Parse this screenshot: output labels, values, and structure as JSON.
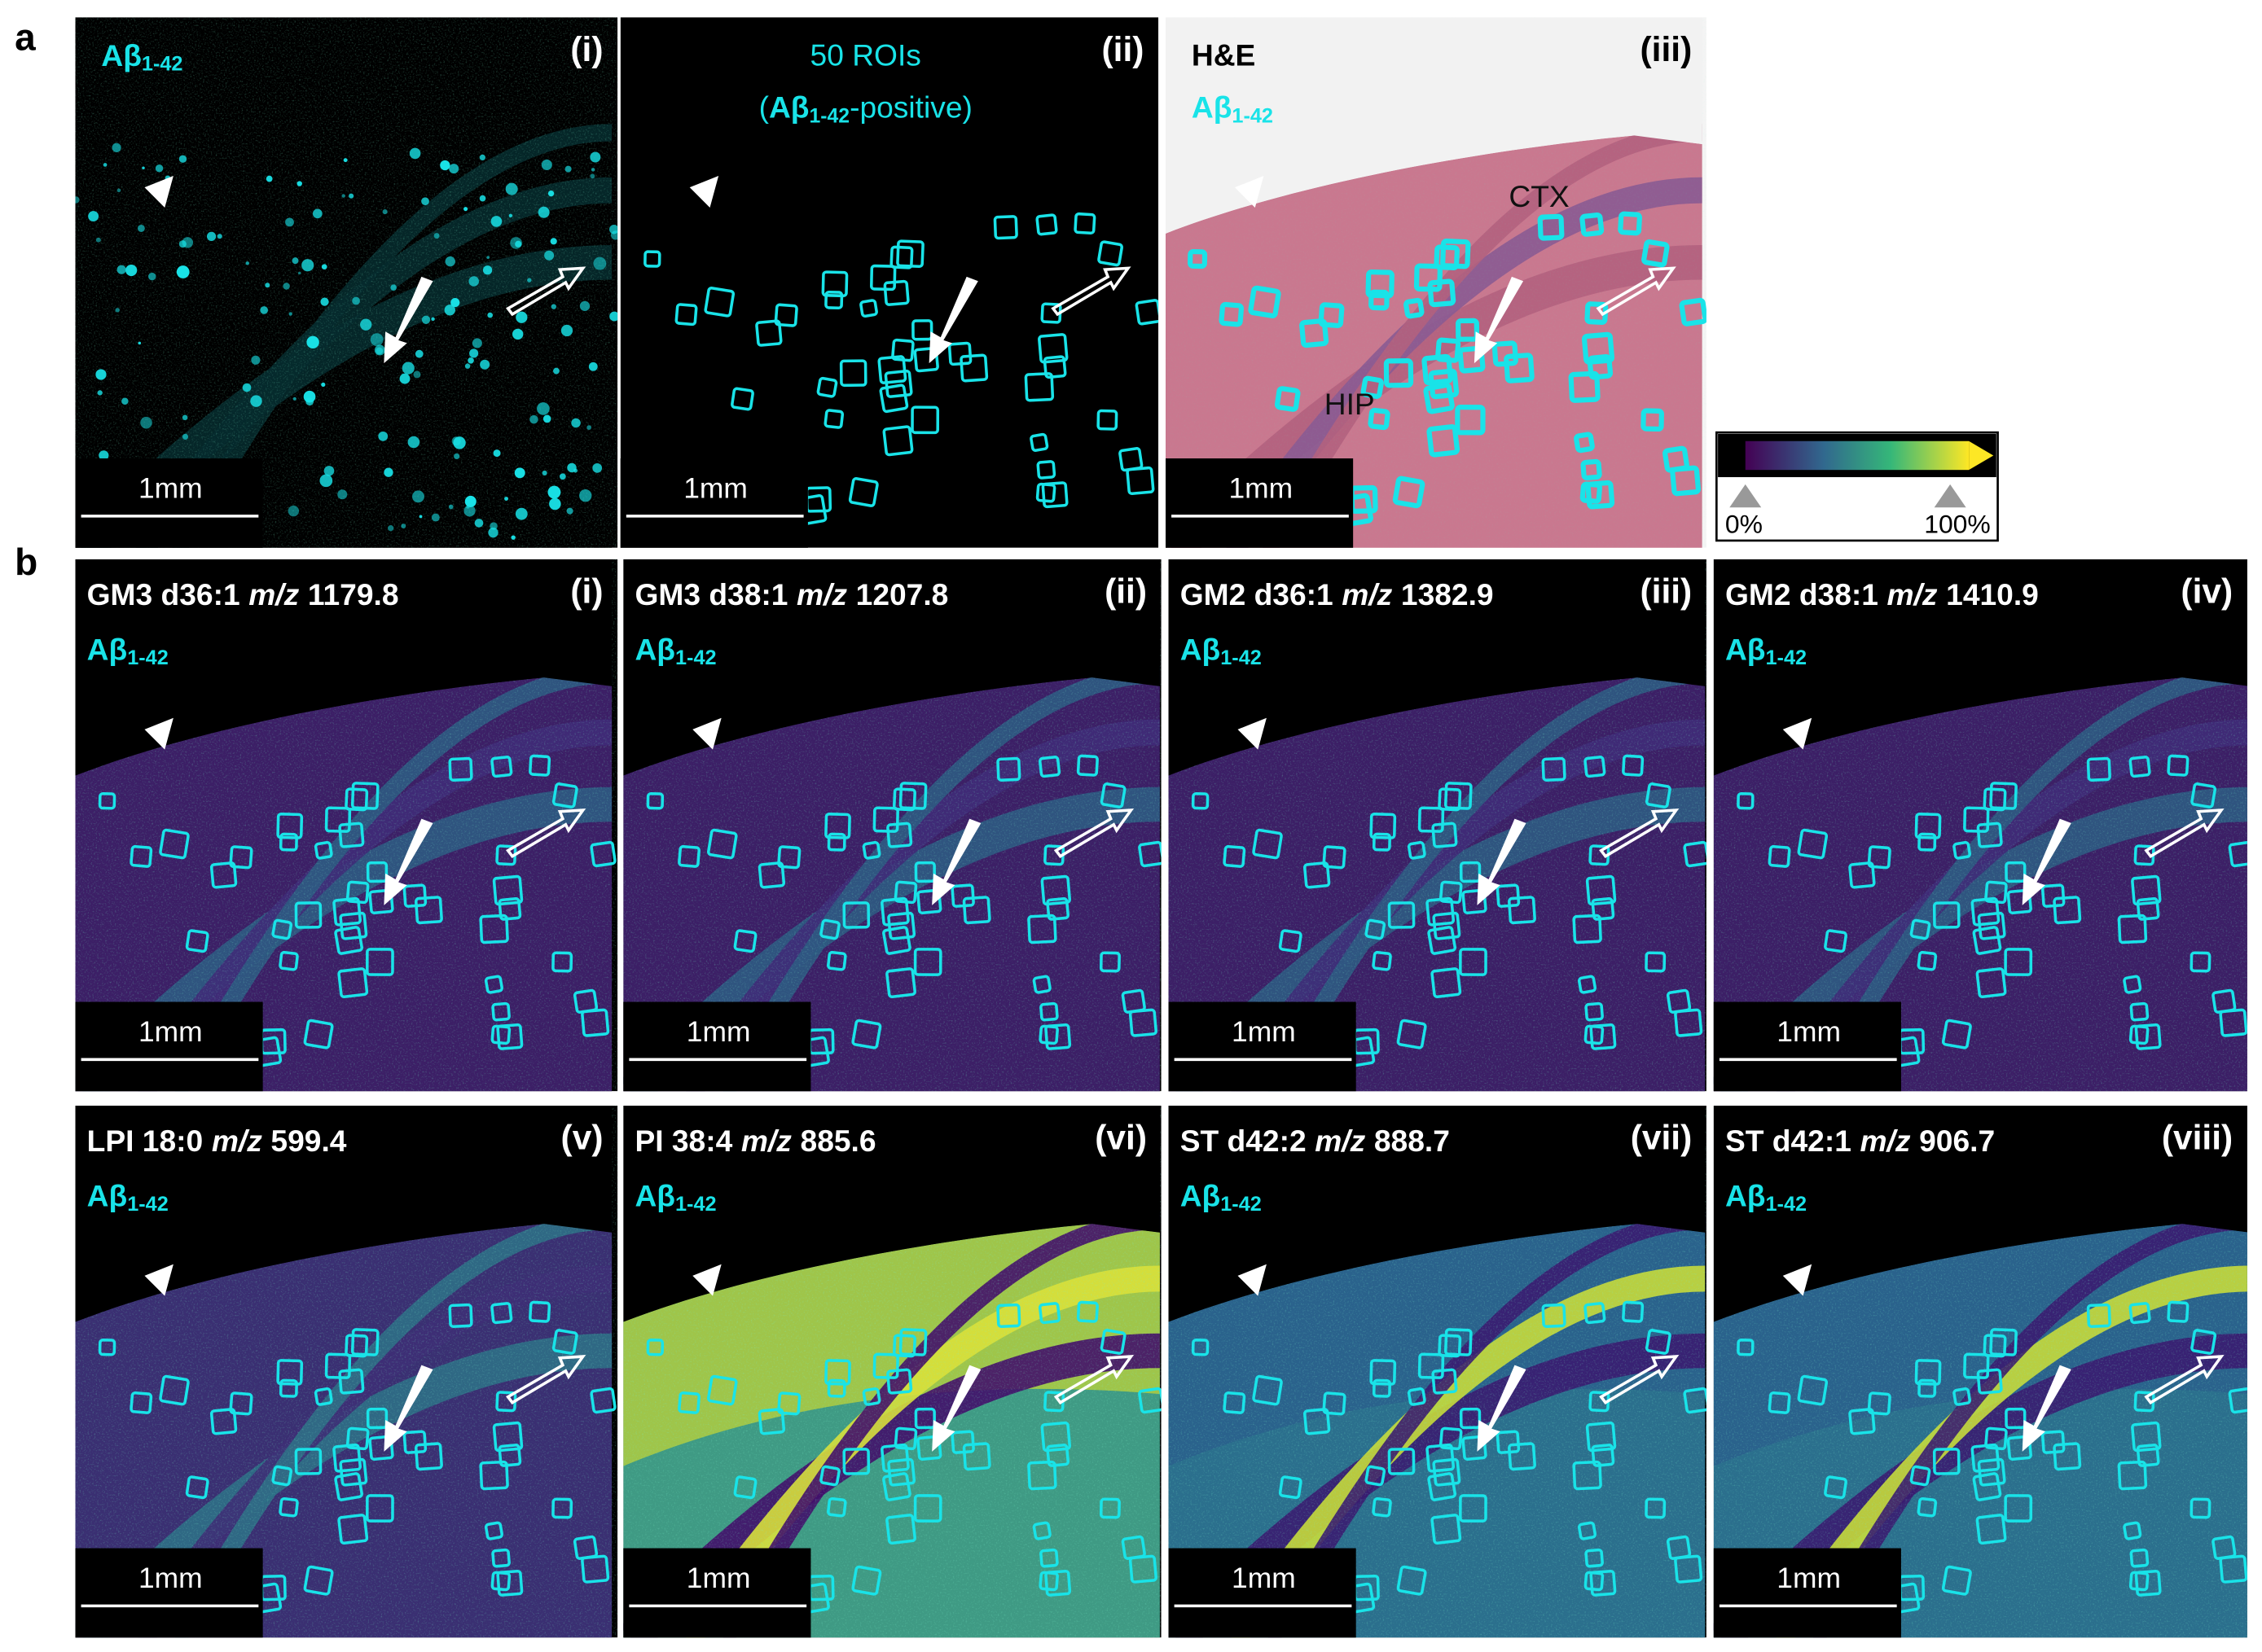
{
  "panel_a": {
    "letter": "a",
    "i": {
      "label": "(i)",
      "marker": "Aβ",
      "marker_sub": "1-42",
      "scale": "1mm"
    },
    "ii": {
      "label": "(ii)",
      "title": "50 ROIs",
      "subtitle_pre": "(",
      "marker": "Aβ",
      "marker_sub": "1-42",
      "subtitle_post": "-positive)",
      "scale": "1mm"
    },
    "iii": {
      "label": "(iii)",
      "stain": "H&E",
      "marker": "Aβ",
      "marker_sub": "1-42",
      "regions": [
        "CTX",
        "HIP"
      ],
      "scale": "1mm"
    },
    "colorbar": {
      "min": "0%",
      "max": "100%"
    }
  },
  "panel_b": {
    "letter": "b",
    "panels": [
      {
        "label": "(i)",
        "lipid": "GM3 d36:1",
        "mz_label": "m/z",
        "mz": "1179.8",
        "marker": "Aβ",
        "marker_sub": "1-42",
        "scale": "1mm"
      },
      {
        "label": "(ii)",
        "lipid": "GM3 d38:1",
        "mz_label": "m/z",
        "mz": "1207.8",
        "marker": "Aβ",
        "marker_sub": "1-42",
        "scale": "1mm"
      },
      {
        "label": "(iii)",
        "lipid": "GM2 d36:1",
        "mz_label": "m/z",
        "mz": "1382.9",
        "marker": "Aβ",
        "marker_sub": "1-42",
        "scale": "1mm"
      },
      {
        "label": "(iv)",
        "lipid": "GM2 d38:1",
        "mz_label": "m/z",
        "mz": "1410.9",
        "marker": "Aβ",
        "marker_sub": "1-42",
        "scale": "1mm"
      },
      {
        "label": "(v)",
        "lipid": "LPI 18:0",
        "mz_label": "m/z",
        "mz": "599.4",
        "marker": "Aβ",
        "marker_sub": "1-42",
        "scale": "1mm"
      },
      {
        "label": "(vi)",
        "lipid": "PI 38:4",
        "mz_label": "m/z",
        "mz": "885.6",
        "marker": "Aβ",
        "marker_sub": "1-42",
        "scale": "1mm"
      },
      {
        "label": "(vii)",
        "lipid": "ST d42:2",
        "mz_label": "m/z",
        "mz": "888.7",
        "marker": "Aβ",
        "marker_sub": "1-42",
        "scale": "1mm"
      },
      {
        "label": "(viii)",
        "lipid": "ST d42:1",
        "mz_label": "m/z",
        "mz": "906.7",
        "marker": "Aβ",
        "marker_sub": "1-42",
        "scale": "1mm"
      }
    ]
  }
}
